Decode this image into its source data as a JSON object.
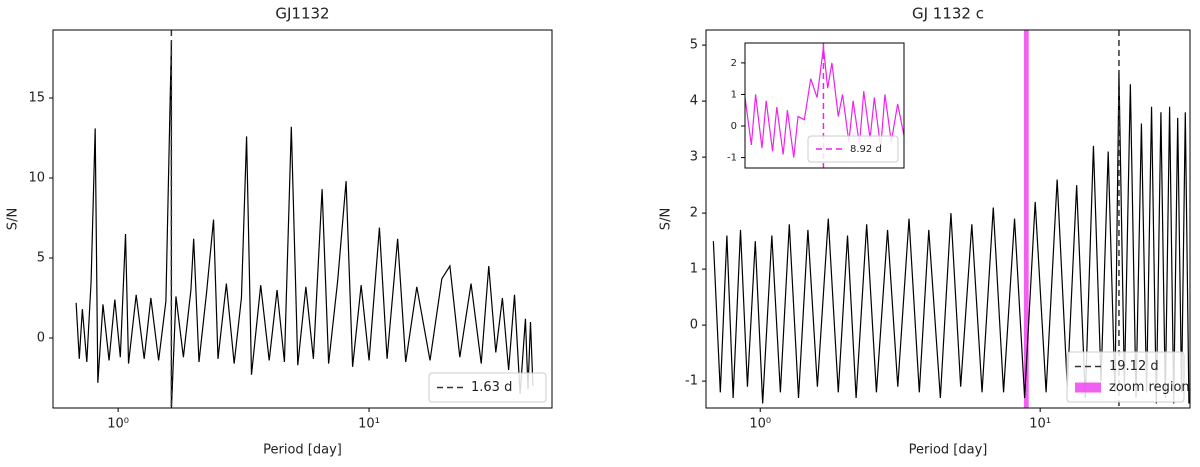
{
  "chart_data": [
    {
      "type": "line",
      "title": "GJ1132",
      "xlabel": "Period [day]",
      "ylabel": "S/N",
      "xscale": "log",
      "xlim": [
        0.55,
        53.6
      ],
      "ylim": [
        -4.375,
        19.25
      ],
      "xticks": [
        {
          "value": 1,
          "label": "10⁰"
        },
        {
          "value": 10,
          "label": "10¹"
        }
      ],
      "yticks": [
        0,
        5,
        10,
        15
      ],
      "x": [
        0.68,
        0.7,
        0.72,
        0.75,
        0.78,
        0.81,
        0.83,
        0.87,
        0.92,
        0.97,
        1.02,
        1.07,
        1.1,
        1.18,
        1.27,
        1.35,
        1.45,
        1.55,
        1.63,
        1.63,
        1.7,
        1.82,
        1.95,
        2.0,
        2.1,
        2.25,
        2.4,
        2.5,
        2.7,
        2.9,
        3.1,
        3.25,
        3.4,
        3.7,
        4.0,
        4.3,
        4.6,
        4.9,
        5.2,
        5.6,
        6.0,
        6.5,
        6.9,
        7.5,
        8.1,
        8.6,
        9.3,
        10.0,
        11.0,
        11.8,
        13.0,
        14.0,
        15.5,
        17.5,
        19.5,
        21.0,
        23.0,
        25.5,
        28,
        30,
        32,
        34,
        36,
        38,
        40,
        42,
        43,
        44,
        45
      ],
      "series": [
        {
          "color": "#000000",
          "values": [
            2.2,
            -1.3,
            1.8,
            -1.5,
            3.5,
            13.1,
            -2.8,
            2.1,
            -1.4,
            2.4,
            -1.2,
            6.5,
            -1.6,
            2.7,
            -1.3,
            2.5,
            -1.4,
            2.3,
            18.5,
            -4.5,
            2.6,
            -1.2,
            3.0,
            6.2,
            -1.5,
            2.8,
            7.4,
            -1.3,
            3.4,
            -1.6,
            2.5,
            12.6,
            -2.3,
            3.3,
            -1.4,
            3.0,
            -1.5,
            13.2,
            -1.7,
            3.2,
            -1.3,
            9.3,
            -1.6,
            3.6,
            9.8,
            -1.8,
            3.3,
            -1.4,
            6.9,
            -1.3,
            6.2,
            -1.5,
            3.2,
            -1.4,
            3.7,
            4.5,
            -1.2,
            3.4,
            -1.6,
            4.5,
            -0.9,
            2.5,
            -2.0,
            2.7,
            -3.5,
            1.2,
            -3.2,
            1.0,
            -3.0
          ]
        }
      ],
      "vlines": [
        {
          "x": 1.63,
          "label": "1.63 d",
          "color": "#333333",
          "style": "dashed"
        }
      ],
      "legend": "lower right"
    },
    {
      "type": "line",
      "title": "GJ 1132 c",
      "xlabel": "Period [day]",
      "ylabel": "S/N",
      "xscale": "log",
      "xlim": [
        0.64,
        34.3
      ],
      "ylim": [
        -1.48,
        5.27
      ],
      "xticks": [
        {
          "value": 1,
          "label": "10⁰"
        },
        {
          "value": 10,
          "label": "10¹"
        }
      ],
      "yticks": [
        -1,
        0,
        1,
        2,
        3,
        4,
        5
      ],
      "x": [
        0.68,
        0.72,
        0.76,
        0.8,
        0.85,
        0.9,
        0.96,
        1.02,
        1.1,
        1.18,
        1.27,
        1.37,
        1.48,
        1.6,
        1.75,
        1.9,
        2.05,
        2.2,
        2.4,
        2.6,
        2.85,
        3.1,
        3.4,
        3.7,
        4.0,
        4.4,
        4.8,
        5.2,
        5.7,
        6.2,
        6.8,
        7.4,
        8.1,
        8.8,
        9.6,
        10.5,
        11.5,
        12.5,
        13.5,
        14.5,
        15.5,
        16.5,
        17.5,
        18.5,
        19.12,
        20,
        21,
        22,
        23,
        24,
        25,
        26,
        27,
        28,
        29,
        30,
        31,
        32,
        33,
        34
      ],
      "series": [
        {
          "color": "#000000",
          "values": [
            1.5,
            -1.2,
            1.6,
            -1.3,
            1.7,
            -1.1,
            1.5,
            -1.4,
            1.6,
            -1.2,
            1.8,
            -1.3,
            1.7,
            -1.1,
            1.9,
            -1.2,
            1.6,
            -1.3,
            1.8,
            -1.2,
            1.7,
            -1.1,
            1.9,
            -1.2,
            1.7,
            -1.3,
            2.0,
            -1.1,
            1.8,
            -1.2,
            2.1,
            -1.2,
            1.9,
            -1.3,
            2.2,
            -1.2,
            2.6,
            -1.1,
            2.5,
            -1.3,
            3.2,
            -1.0,
            3.1,
            -1.2,
            4.5,
            -1.1,
            4.3,
            -1.3,
            3.6,
            -1.2,
            3.9,
            -1.4,
            3.8,
            -1.3,
            3.9,
            -1.4,
            3.7,
            -1.2,
            3.8,
            -1.4
          ]
        }
      ],
      "vlines": [
        {
          "x": 19.12,
          "label": "19.12 d",
          "color": "#333333",
          "style": "dashed"
        }
      ],
      "spans": [
        {
          "x": [
            8.75,
            9.1
          ],
          "label": "zoom region",
          "color": "#ee44ee"
        }
      ],
      "legend": "lower right",
      "inset": {
        "type": "line",
        "xscale": "linear",
        "xlim": [
          8.55,
          9.3
        ],
        "ylim": [
          -1.33,
          2.63
        ],
        "yticks": [
          -1,
          0,
          1,
          2
        ],
        "x": [
          8.55,
          8.58,
          8.6,
          8.63,
          8.65,
          8.68,
          8.7,
          8.73,
          8.75,
          8.78,
          8.8,
          8.83,
          8.86,
          8.89,
          8.92,
          8.94,
          8.96,
          8.99,
          9.01,
          9.04,
          9.06,
          9.09,
          9.11,
          9.14,
          9.16,
          9.19,
          9.21,
          9.24,
          9.27,
          9.3
        ],
        "series": [
          {
            "color": "#ee22ee",
            "values": [
              0.9,
              -0.6,
              1.0,
              -0.7,
              0.8,
              -0.8,
              0.6,
              -0.9,
              0.5,
              -1.0,
              0.3,
              0.2,
              1.5,
              0.9,
              2.5,
              1.2,
              2.0,
              0.3,
              1.0,
              -0.5,
              0.8,
              -0.6,
              1.1,
              -0.4,
              0.9,
              -0.7,
              1.0,
              -0.5,
              0.7,
              -0.3
            ]
          }
        ],
        "vlines": [
          {
            "x": 8.92,
            "label": "8.92 d",
            "color": "#ee22ee",
            "style": "dashed"
          }
        ],
        "legend": "lower right"
      }
    }
  ]
}
